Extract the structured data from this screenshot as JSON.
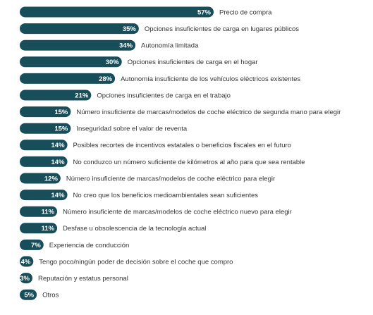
{
  "chart_data": {
    "type": "bar",
    "orientation": "horizontal",
    "title": "",
    "xlabel": "",
    "ylabel": "",
    "xlim": [
      0,
      57
    ],
    "grid": false,
    "legend": "none",
    "bar_color": "#174e5a",
    "value_label_color": "#ffffff",
    "category_label_color": "#333333",
    "categories": [
      "Precio de compra",
      "Opciones insuficientes de carga en lugares públicos",
      "Autonomía limitada",
      "Opciones insuficientes de carga en el hogar",
      "Autonomía insuficiente de los vehículos eléctricos existentes",
      "Opciones insuficientes de carga en el trabajo",
      "Número insuficiente de marcas/modelos de coche eléctrico de segunda mano para elegir",
      "Inseguridad sobre el valor de reventa",
      "Posibles recortes de incentivos estatales o beneficios fiscales en el futuro",
      "No conduzco un número suficiente de kilómetros al año para que sea rentable",
      "Número insuficiente de marcas/modelos de coche eléctrico para elegir",
      "No creo que los beneficios medioambientales sean suficientes",
      "Número insuficiente de marcas/modelos de coche eléctrico nuevo para elegir",
      "Desfase u obsolescencia de la tecnología actual",
      "Experiencia de conducción",
      "Tengo poco/ningún poder de decisión sobre el coche que compro",
      "Reputación y estatus personal",
      "Otros"
    ],
    "values": [
      57,
      35,
      34,
      30,
      28,
      21,
      15,
      15,
      14,
      14,
      12,
      14,
      11,
      11,
      7,
      4,
      3,
      5
    ],
    "value_labels": [
      "57%",
      "35%",
      "34%",
      "30%",
      "28%",
      "21%",
      "15%",
      "15%",
      "14%",
      "14%",
      "12%",
      "14%",
      "11%",
      "11%",
      "7%",
      "4%",
      "3%",
      "5%"
    ]
  }
}
